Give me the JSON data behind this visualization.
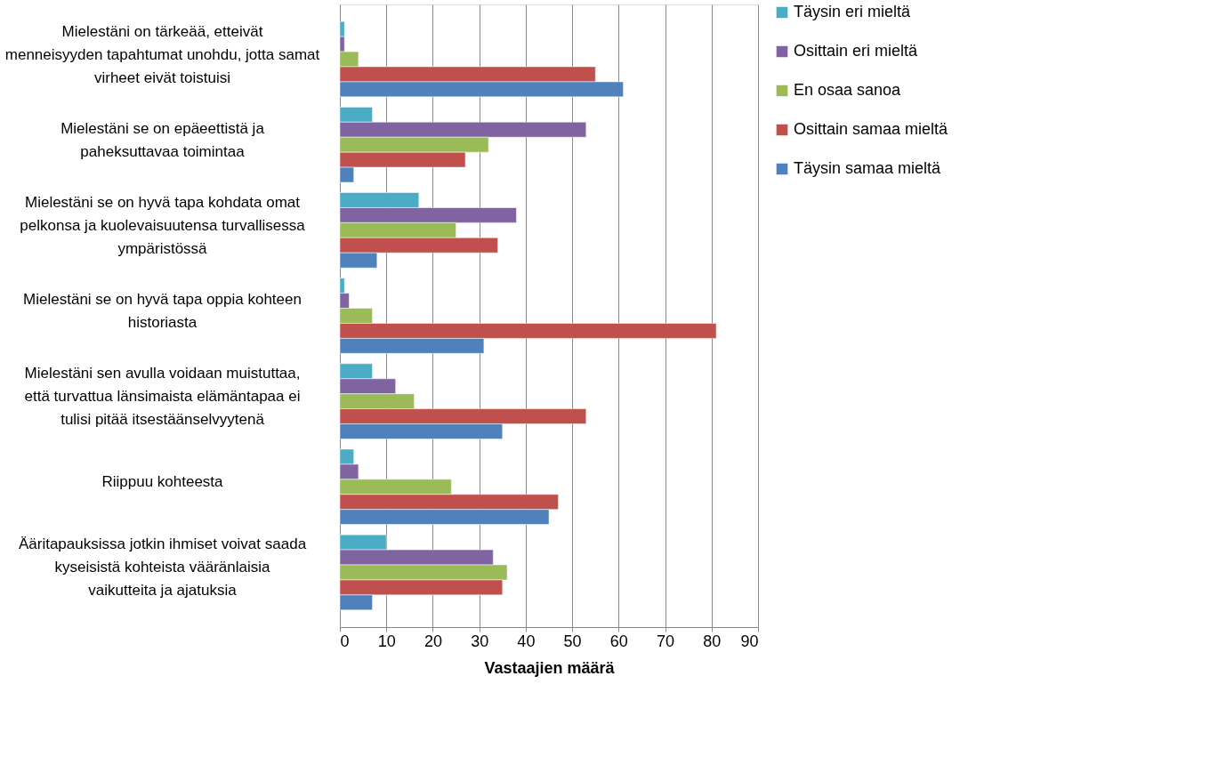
{
  "chart_data": {
    "type": "bar",
    "orientation": "horizontal",
    "xlabel": "Vastaajien määrä",
    "categories": [
      "Mielestäni on tärkeää, etteivät menneisyyden tapahtumat unohdu, jotta samat virheet eivät toistuisi",
      "Mielestäni se on epäeettistä ja paheksuttavaa toimintaa",
      "Mielestäni se on hyvä tapa kohdata omat pelkonsa ja kuolevaisuutensa turvallisessa ympäristössä",
      "Mielestäni se on hyvä tapa oppia kohteen historiasta",
      "Mielestäni sen avulla voidaan muistuttaa, että turvattua länsimaista elämäntapaa ei tulisi pitää itsestäänselvyytenä",
      "Riippuu kohteesta",
      "Ääritapauksissa jotkin ihmiset voivat saada kyseisistä kohteista vääränlaisia vaikutteita ja ajatuksia"
    ],
    "series": [
      {
        "name": "Täysin eri mieltä",
        "color": "#4bacc6",
        "values": [
          1,
          7,
          17,
          1,
          7,
          3,
          10
        ]
      },
      {
        "name": "Osittain eri mieltä",
        "color": "#8064a2",
        "values": [
          1,
          53,
          38,
          2,
          12,
          4,
          33
        ]
      },
      {
        "name": "En osaa sanoa",
        "color": "#9bbb59",
        "values": [
          4,
          32,
          25,
          7,
          16,
          24,
          36
        ]
      },
      {
        "name": "Osittain samaa mieltä",
        "color": "#c0504d",
        "values": [
          55,
          27,
          34,
          81,
          53,
          47,
          35
        ]
      },
      {
        "name": "Täysin samaa mieltä",
        "color": "#4f81bd",
        "values": [
          61,
          3,
          8,
          31,
          35,
          45,
          7
        ]
      }
    ],
    "xlim": [
      0,
      90
    ],
    "xticks": [
      0,
      10,
      20,
      30,
      40,
      50,
      60,
      70,
      80,
      90
    ],
    "grid": "x",
    "legend": "right"
  }
}
